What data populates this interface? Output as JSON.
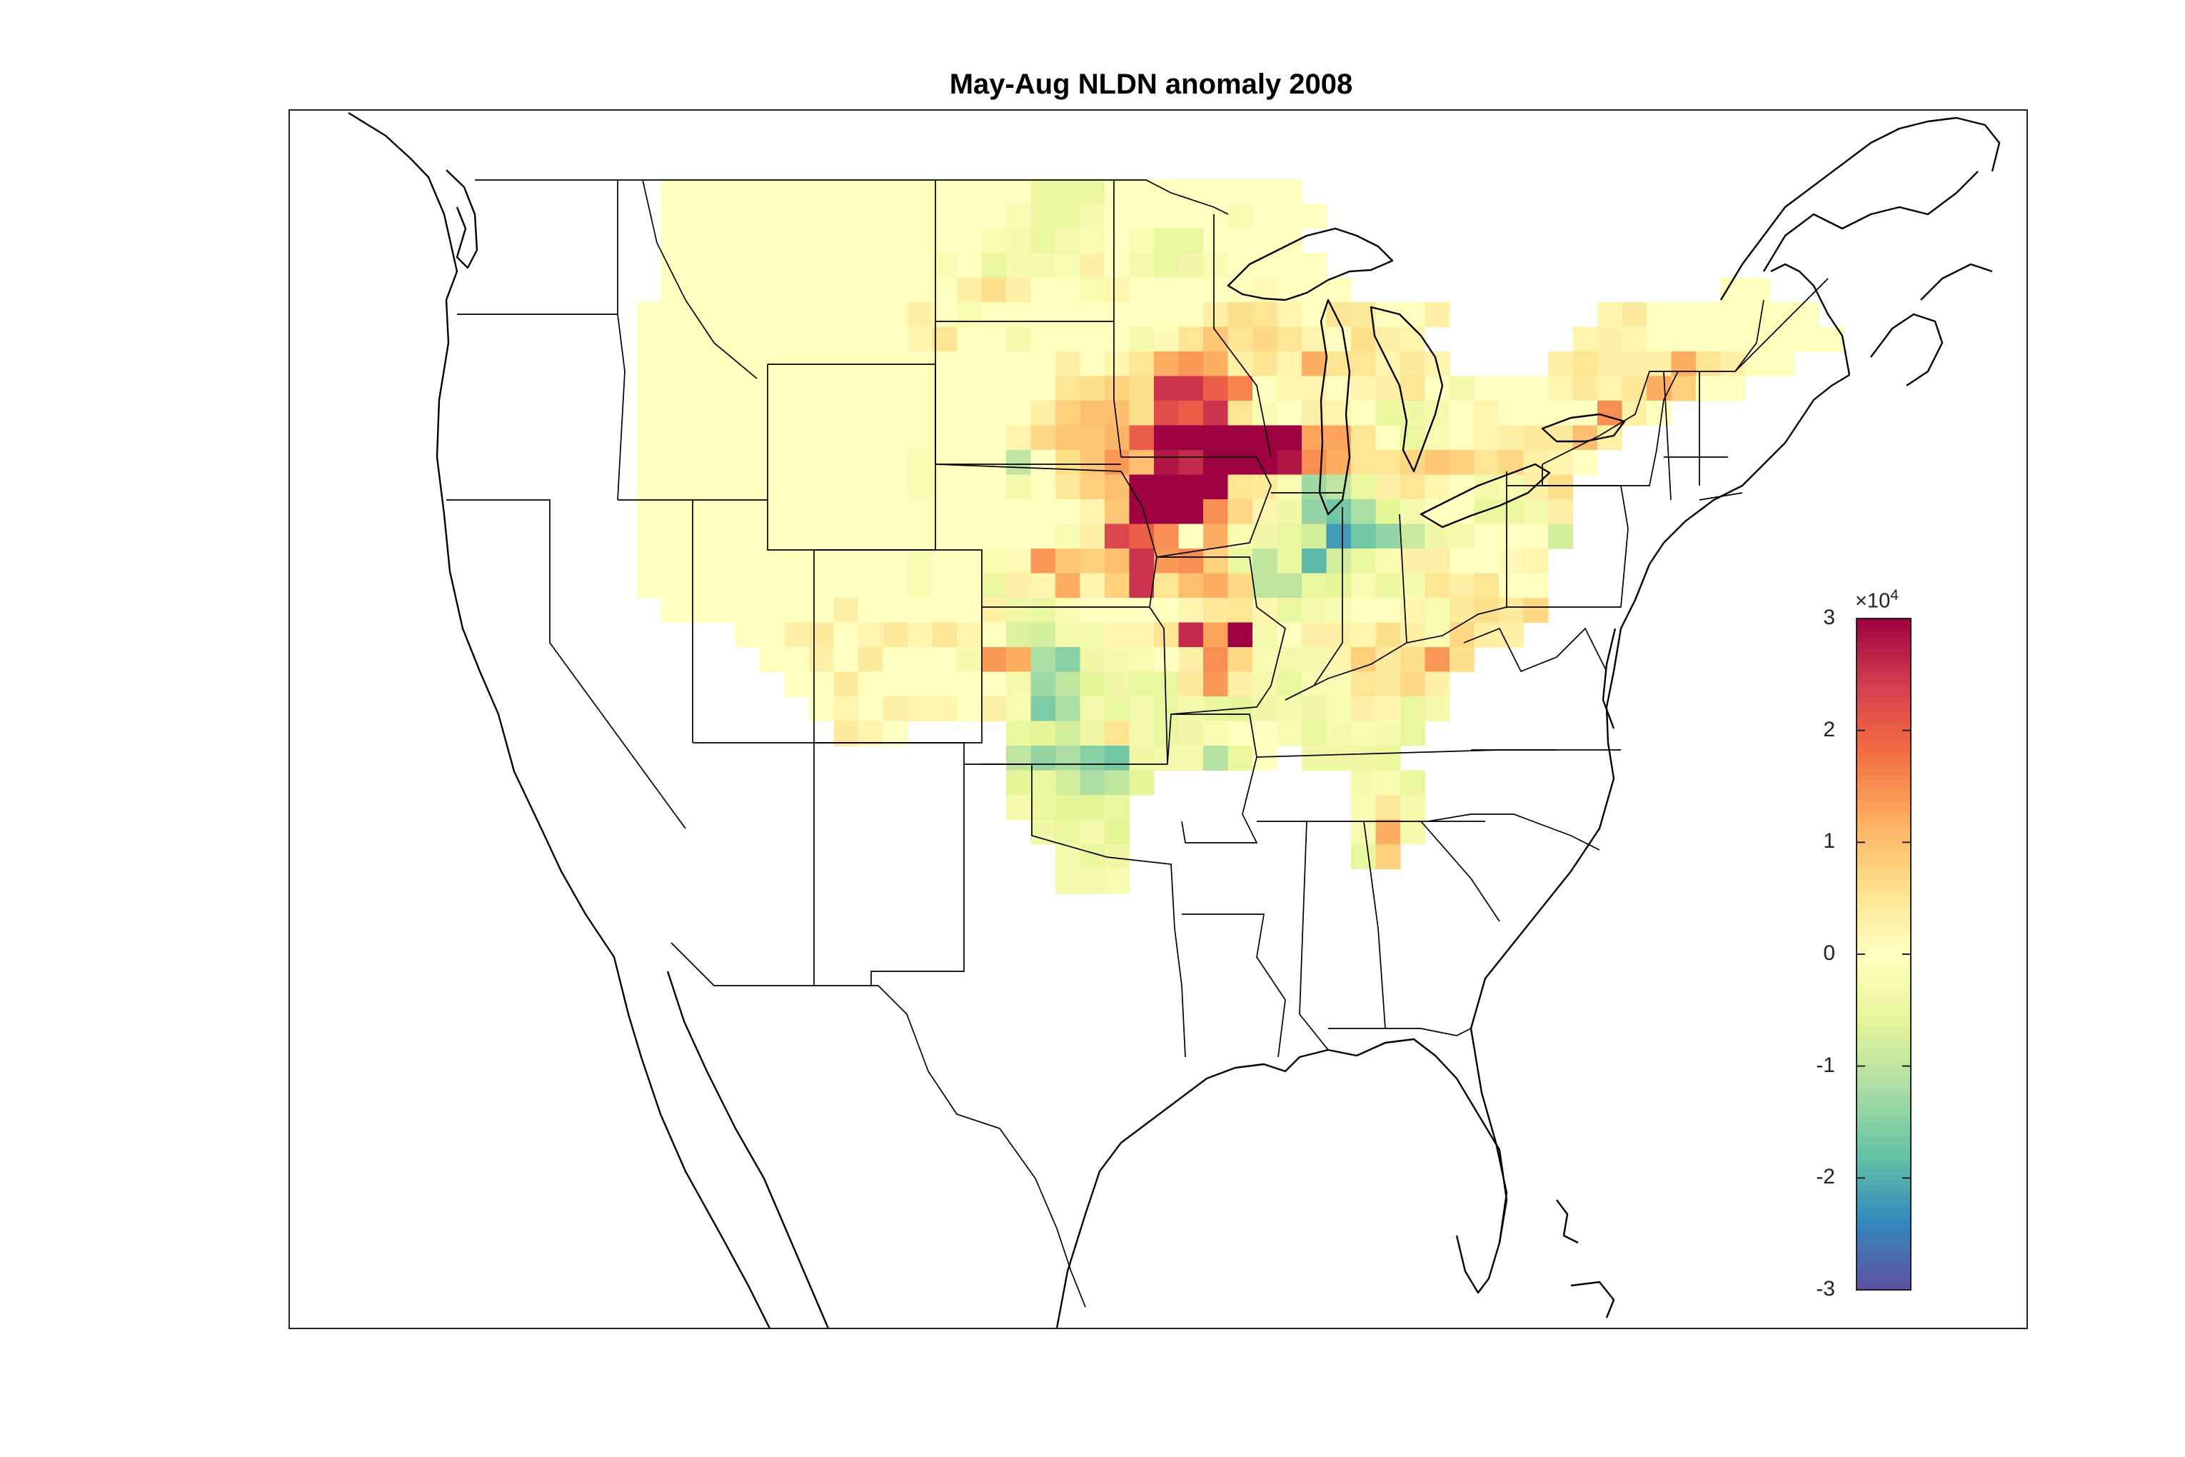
{
  "title": "May-Aug NLDN anomaly 2008",
  "colorbar": {
    "ticks": [
      "3",
      "2",
      "1",
      "0",
      "-1",
      "-2",
      "-3"
    ],
    "multiplier_base": "×10",
    "multiplier_exponent": "4",
    "range": [
      -3,
      3
    ],
    "colormap": [
      "#5e4fa2",
      "#3288bd",
      "#66c2a5",
      "#abdda4",
      "#e6f598",
      "#ffffbf",
      "#fee08b",
      "#fdae61",
      "#f46d43",
      "#d53e4f",
      "#9e0142"
    ]
  },
  "chart_data": {
    "type": "heatmap",
    "title": "May-Aug NLDN anomaly 2008",
    "value_units": "×10^4",
    "colorbar_range": [
      -3,
      3
    ],
    "grid_rows_top_to_bottom": [
      ". . . . . . . . . . . . . . . . . . . . . . . . . . . . . . . . . . . . . . . . . . . . . . . . . . . . . . . . .",
      ". . . . . . . . 0 0 0 0 0 0 0 0 0 0 0 0 0 0 0 -.5 -.5 -.5 0 0 0 0 0 0 0 0 . . . . . . . . . . . . . . . . . . . . .",
      ". . . . . . . . 0 0 0 0 0 0 0 0 0 0 0 0 0 0 -.2 -.5 -.5 -.3 0 0 0 0 0 -.2 0 0 0 . . . . . . . . . . . . . . . . . . .",
      ". . . . . . . . 0 0 0 0 0 0 0 0 0 0 0 0 0 -.2 -.3 -.5 -.3 -.2 0 -.2 -.5 -.5 0 0 0 0 . . . . . . . . . . . . . . . . . .",
      ". . . . . . . . 0 0 0 0 0 0 0 0 0 0 0 -.2 0 -.5 -.3 -.3 -.2 .3 0 -.3 -.5 -.4 -.2 0 0 0 0 . . . . . . . . . . . . . . . .",
      ". . . . . . . . 0 0 0 0 0 0 0 0 0 0 0 0 .3 .6 .3 0 0 -.2 .2 0 0 0 0 0 .1 0 0 0 . . . . . . . . . . . . . . . 0 0 .",
      ". . . . . . . 0 0 0 0 0 0 0 0 0 0 0 .3 0 -.2 0 0 0 0 0 0 0 0 0 .3 .6 .5 .2 0 .5 .4 0 0 .3 . . . . . . .2 .4 0 0 0 0 0 0 0 .",
      ". . . . . . . 0 0 0 0 0 0 0 0 0 0 0 .2 .5 0 0 -.3 0 0 0 0 -.3 .1 .5 .9 .5 .7 .5 .2 0 .6 .3 .2 . . . . . . .2 .3 .2 0 0 0 0 0 0 0 0",
      ". . . . . . . 0 0 0 0 0 0 0 0 0 0 0 0 0 0 0 0 0 .3 0 .2 .5 1.2 1.4 1.2 .3 .5 .2 1.2 .5 .5 .2 .4 .2 . . . . .3 .5 .3 .3 .3 1.2 .5 .3 0 0 .",
      ". . . . . . . 0 0 0 0 0 0 0 0 0 0 0 0 0 0 0 0 0 .5 .6 .8 .6 2.5 2.5 2 1.6 0 .2 .2 0 .2 .3 .5 0 -.3 0 0 0 .2 .4 .2 .5 1.2 .8 0 0 .",
      ". . . . . . . 0 0 0 0 0 0 0 0 0 0 0 0 0 0 0 0 .3 .8 1 1 .6 2.2 2 2.5 .5 -.2 0 .3 .2 0 -.5 -.4 -.3 0 .2 0 0 0 0 1.5 .3 0 . .",
      ". . . . . . . 0 0 0 0 0 0 0 0 0 0 0 0 0 0 0 .2 .7 .9 .9 1.1 2 3 3 3 3 3 3 1.3 1.3 .5 0 -.5 -.2 0 .2 .3 .4 .4 1 .3 . . .",
      ". . . . . . . 0 0 0 0 0 0 0 0 0 0 0 -.2 0 0 0 -1 0 .6 .9 1.4 1 2.8 2.6 3 3 3 2.8 1.5 1.2 .5 .5 .7 .9 .8 .5 .7 .3 .2 0 . . .",
      ". . . . . . . 0 0 0 0 0 0 0 0 0 0 0 -.2 0 0 0 -.3 0 .4 .8 1 3 3 3 3 .5 .4 -.2 -1.3 -1 -.5 .3 .5 .2 0 -.3 -.2 .3 .6 . . . .",
      ". . . . . . . 0 0 0 0 0 0 0 0 0 0 0 0 0 0 0 0 0 0 .2 .9 3 3 3 1.5 .7 .2 -.4 -1.4 -1.7 -1.2 -.6 -.3 0 0 -.5 -.5 -.3 .3 . . . .",
      ". . . . . . . 0 0 0 0 0 0 0 0 0 0 0 0 0 0 0 0 0 -.2 .3 2.3 2 1.5 0 1.2 -.2 -.4 -.5 -.8 -2.2 -1.7 -1.4 -.9 -.4 -.3 0 0 0 -.8 . . . .",
      ". . . . . . . 0 0 0 0 0 0 0 0 0 0 0 -.2 0 0 -.2 .1 1.4 .9 .8 1 2.5 1.4 1.5 .8 -.5 -1 -.5 -1.9 -.8 -.5 -.2 .3 .3 0 0 .1 .2 . . . . .",
      ". . . . . . . 0 0 0 0 0 0 0 0 0 0 0 -.2 0 0 -.5 .3 .2 1.2 .2 .8 2.5 .5 1 1.2 .7 -1 -1 -.5 -.6 -.2 -.5 -.3 .5 .3 .5 0 0 . . . . .",
      ". . . . . . . . 0 0 0 0 0 0 0 .3 0 0 0 0 0 .3 -.4 -.5 -.2 0 0 0 0 .2 .4 .5 .2 -.5 -.3 -.2 0 0 .2 -.2 .4 .6 .4 .7 . . . . . .",
      ". . . . . . . . . . . 0 0 .3 .4 0 .2 .4 .2 .5 .2 0 -.7 -.8 -.3 -.3 .2 .2 .5 2.6 1.3 3 -.3 0 .3 .3 .2 .6 .3 -.2 .7 .3 .3 . . . . . . .",
      ". . . . . . . . . . . . 0 0 .3 0 .4 0 0 0 -.3 1.4 1.2 -1.2 -1.5 -.4 -.3 -.2 0 .3 1.5 .7 -.2 -.3 -.3 .2 .8 .4 .6 1.4 .6 . . . . . . . .",
      ". . . . . . . . . . . . . 0 0 .4 0 0 0 0 0 0 -.3 -1.3 -1 -.6 -.4 -.5 -.5 .4 1.4 .3 -.3 -.5 -.2 -.2 .5 .4 .7 .3 . . . . . . . . .",
      ". . . . . . . . . . . . . . 0 .2 0 .3 .2 .2 0 .3 -.2 -1.6 -1.2 -.3 -.5 -.3 -.5 -.3 -.5 -.6 -.4 -.3 -.4 -.2 .3 .2 -.5 -.3 . . . . . . . . .",
      ". . . . . . . . . . . . . . . .4 .2 0 . . . . -.5 -.6 -.8 -.4 .5 -.3 -.5 -.4 -.2 0 0 -.2 -.5 -.3 -.2 -.3 -.5 . . . . . . . . . .",
      ". . . . . . . . . . . . . . . . . . . . . . -1 -1.4 -1.2 -1.5 -1.7 -.4 -.3 -.3 -1.1 -.5 0 . -.4 -.4 -.4 -.5 . . . . . . . . . . .",
      ". . . . . . . . . . . . . . . . . . . . . . -.6 -.5 -.8 -1.2 -1 -.6 . . . . . . . . -.3 -.2 -.5 . . . . . . . . . . .",
      ". . . . . . . . . . . . . . . . . . . . . . -.3 -.5 -.6 -.6 -.5 . . . . . . . . . -.2 .4 -.3 . . . . . . . . . . .",
      ". . . . . . . . . . . . . . . . . . . . . . . -.4 -.5 -.3 -.6 . . . . . . . . . -.2 1.2 -.3 . . . . . . . . . . .",
      ". . . . . . . . . . . . . . . . . . . . . . . . -.3 -.5 -.4 . . . . . . . . . -.5 .8 . . . . . . . . . . . .",
      ". . . . . . . . . . . . . . . . . . . . . . . . -.3 -.3 -.2 . . . . . . . . . . . . . . . . . . . . . . ."
    ]
  }
}
